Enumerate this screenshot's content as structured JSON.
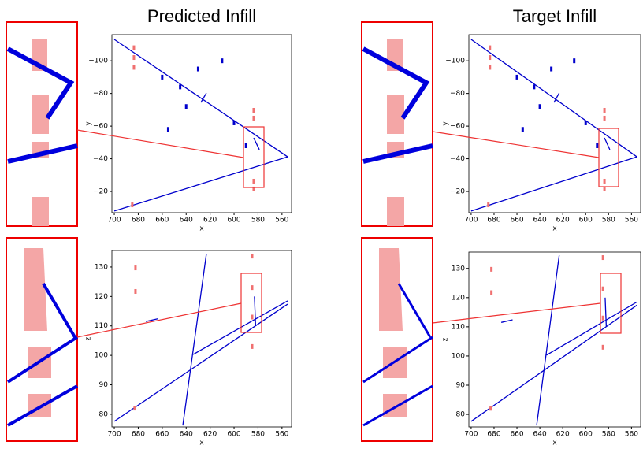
{
  "chart_data": [
    {
      "type": "scatter",
      "title": "Predicted Infill",
      "xlabel": "x",
      "ylabel": "y",
      "xlim": [
        702,
        552
      ],
      "ylim": [
        -7,
        -116
      ],
      "xticks": [
        700,
        680,
        660,
        640,
        620,
        600,
        580,
        560
      ],
      "yticks": [
        {
          "value": -100,
          "label": "−100"
        },
        {
          "value": -80,
          "label": "−80"
        },
        {
          "value": -60,
          "label": "−60"
        },
        {
          "value": -40,
          "label": "−40"
        },
        {
          "value": -20,
          "label": "−20"
        }
      ],
      "series": [
        {
          "style": "line",
          "color": "#0000cc",
          "x": [
            700,
            555.3
          ],
          "values": [
            -8,
            -41.2
          ]
        },
        {
          "style": "line",
          "color": "#0000cc",
          "x": [
            700,
            555.3
          ],
          "values": [
            -113.1,
            -41.2
          ]
        },
        {
          "style": "line",
          "color": "#0000cc",
          "x": [
            583.6,
            578.9
          ],
          "values": [
            -52.8,
            -45.6
          ]
        },
        {
          "style": "line",
          "color": "#0000cc",
          "x": [
            627.7,
            623.1
          ],
          "values": [
            -74.5,
            -80.3
          ]
        },
        {
          "style": "points",
          "color": "#0000cc",
          "x": [
            660,
            645,
            610,
            600,
            630,
            640,
            590,
            655
          ],
          "values": [
            -90,
            -84,
            -100,
            -62,
            -95,
            -72,
            -48,
            -58
          ]
        },
        {
          "style": "points",
          "color": "#f07070",
          "x": [
            683.6,
            683.6,
            683.6,
            583.6,
            583.6,
            583.6,
            583.6,
            685
          ],
          "values": [
            -108,
            -102,
            -96,
            -69.7,
            -64.9,
            -26.3,
            -21.5,
            -11.8
          ]
        }
      ]
    },
    {
      "type": "scatter",
      "xlabel": "x",
      "ylabel": "z",
      "xlim": [
        702,
        552
      ],
      "ylim": [
        75.7,
        135.6
      ],
      "xticks": [
        700,
        680,
        660,
        640,
        620,
        600,
        580,
        560
      ],
      "yticks": [
        80,
        90,
        100,
        110,
        120,
        130
      ],
      "series": [
        {
          "style": "line",
          "color": "#0000cc",
          "x": [
            700,
            555.3
          ],
          "values": [
            77.6,
            117.4
          ]
        },
        {
          "style": "line",
          "color": "#0000cc",
          "x": [
            623.1,
            642.8
          ],
          "values": [
            134.5,
            76.2
          ]
        },
        {
          "style": "line",
          "color": "#0000cc",
          "x": [
            634.2,
            555.3
          ],
          "values": [
            100.3,
            118.5
          ]
        },
        {
          "style": "line",
          "color": "#0000cc",
          "x": [
            673.7,
            663.8
          ],
          "values": [
            111.5,
            112.4
          ]
        },
        {
          "style": "line",
          "color": "#0000cc",
          "x": [
            583,
            582
          ],
          "values": [
            120,
            110
          ]
        },
        {
          "style": "points",
          "color": "#f07070",
          "x": [
            682.3,
            682.3,
            584.9,
            584.9,
            584.9,
            584.9,
            683
          ],
          "values": [
            129.7,
            121.7,
            133.7,
            123,
            113,
            103,
            82.1
          ]
        }
      ]
    },
    {
      "type": "scatter",
      "title": "Target Infill",
      "xlabel": "x",
      "ylabel": "y",
      "xlim": [
        702,
        552
      ],
      "ylim": [
        -7,
        -116
      ],
      "xticks": [
        700,
        680,
        660,
        640,
        620,
        600,
        580,
        560
      ],
      "yticks": [
        {
          "value": -100,
          "label": "−100"
        },
        {
          "value": -80,
          "label": "−80"
        },
        {
          "value": -60,
          "label": "−60"
        },
        {
          "value": -40,
          "label": "−40"
        },
        {
          "value": -20,
          "label": "−20"
        }
      ],
      "series": [
        {
          "style": "line",
          "color": "#0000cc",
          "x": [
            700,
            555.3
          ],
          "values": [
            -8,
            -41.2
          ]
        },
        {
          "style": "line",
          "color": "#0000cc",
          "x": [
            700,
            555.3
          ],
          "values": [
            -113.1,
            -41.2
          ]
        },
        {
          "style": "line",
          "color": "#0000cc",
          "x": [
            583.6,
            578.9
          ],
          "values": [
            -52.8,
            -45.6
          ]
        },
        {
          "style": "line",
          "color": "#0000cc",
          "x": [
            627.7,
            623.1
          ],
          "values": [
            -74.5,
            -80.3
          ]
        },
        {
          "style": "points",
          "color": "#0000cc",
          "x": [
            660,
            645,
            610,
            600,
            630,
            640,
            590,
            655
          ],
          "values": [
            -90,
            -84,
            -100,
            -62,
            -95,
            -72,
            -48,
            -58
          ]
        },
        {
          "style": "points",
          "color": "#f07070",
          "x": [
            683.6,
            683.6,
            683.6,
            583.6,
            583.6,
            583.6,
            583.6,
            685
          ],
          "values": [
            -108,
            -102,
            -96,
            -69.7,
            -64.9,
            -26.3,
            -21.5,
            -11.8
          ]
        }
      ]
    },
    {
      "type": "scatter",
      "xlabel": "x",
      "ylabel": "z",
      "xlim": [
        702,
        552
      ],
      "ylim": [
        75.7,
        135.6
      ],
      "xticks": [
        700,
        680,
        660,
        640,
        620,
        600,
        580,
        560
      ],
      "yticks": [
        80,
        90,
        100,
        110,
        120,
        130
      ],
      "series": [
        {
          "style": "line",
          "color": "#0000cc",
          "x": [
            700,
            555.3
          ],
          "values": [
            77.6,
            117.4
          ]
        },
        {
          "style": "line",
          "color": "#0000cc",
          "x": [
            623.1,
            642.8
          ],
          "values": [
            134.5,
            76.2
          ]
        },
        {
          "style": "line",
          "color": "#0000cc",
          "x": [
            634.2,
            555.3
          ],
          "values": [
            100.3,
            118.5
          ]
        },
        {
          "style": "line",
          "color": "#0000cc",
          "x": [
            673.7,
            663.8
          ],
          "values": [
            111.5,
            112.4
          ]
        },
        {
          "style": "line",
          "color": "#0000cc",
          "x": [
            583,
            582
          ],
          "values": [
            120,
            110
          ]
        },
        {
          "style": "points",
          "color": "#f07070",
          "x": [
            682.3,
            682.3,
            584.9,
            584.9,
            584.9,
            584.9,
            683
          ],
          "values": [
            129.7,
            121.7,
            133.7,
            123,
            113,
            103,
            82.1
          ]
        }
      ]
    }
  ]
}
